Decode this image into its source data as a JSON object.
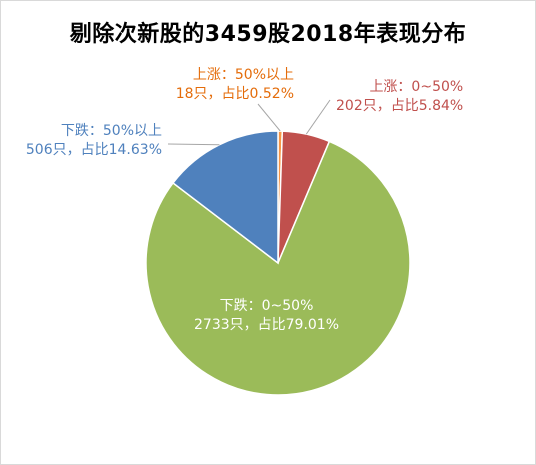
{
  "chart_data": {
    "type": "pie",
    "title": "剔除次新股的3459股2018年表现分布",
    "slices": [
      {
        "category": "上涨：50%以上",
        "count_label": "18只，占比0.52%",
        "value": 0.52,
        "color": "#f79646",
        "label_color": "#e46c0a"
      },
      {
        "category": "上涨：0~50%",
        "count_label": "202只，占比5.84%",
        "value": 5.84,
        "color": "#c0504d",
        "label_color": "#c0504d"
      },
      {
        "category": "下跌：0~50%",
        "count_label": "2733只，占比79.01%",
        "value": 79.01,
        "color": "#9bbb59",
        "label_color": "#ffffff"
      },
      {
        "category": "下跌：50%以上",
        "count_label": "506只，占比14.63%",
        "value": 14.63,
        "color": "#4f81bd",
        "label_color": "#4f81bd"
      }
    ]
  }
}
